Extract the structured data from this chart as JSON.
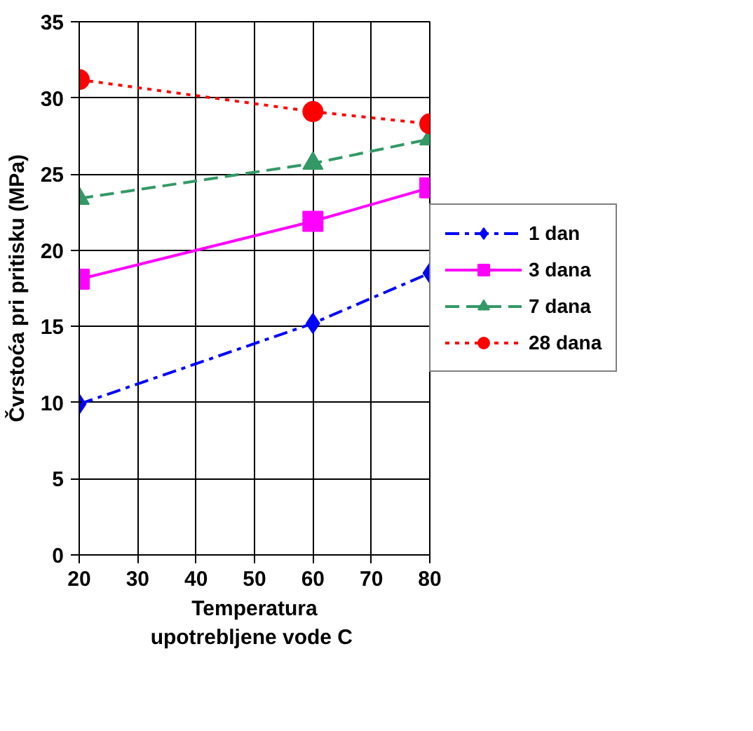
{
  "chart_data": {
    "type": "line",
    "xlabel": "Temperatura\nupotrebljene vode  C",
    "ylabel": "Čvrstoća pri pritisku (MPa)",
    "x": [
      20,
      60,
      80
    ],
    "xlim": [
      20,
      80
    ],
    "xticks": [
      20,
      30,
      40,
      50,
      60,
      70,
      80
    ],
    "ylim": [
      0,
      35
    ],
    "yticks": [
      0,
      5,
      10,
      15,
      20,
      25,
      30,
      35
    ],
    "grid": true,
    "legend": "right",
    "series": [
      {
        "name": "1 dan",
        "color": "#0000ff",
        "values": [
          9.9,
          15.2,
          18.5
        ],
        "marker": "diamond",
        "line_style": "dashdot"
      },
      {
        "name": "3 dana",
        "color": "#ff00ff",
        "values": [
          18.1,
          21.9,
          24.1
        ],
        "marker": "square",
        "line_style": "solid"
      },
      {
        "name": "7 dana",
        "color": "#339966",
        "values": [
          23.4,
          25.7,
          27.3
        ],
        "marker": "triangle",
        "line_style": "dashed"
      },
      {
        "name": "28 dana",
        "color": "#ff0000",
        "values": [
          31.2,
          29.1,
          28.3
        ],
        "marker": "circle",
        "line_style": "dotted"
      }
    ]
  }
}
